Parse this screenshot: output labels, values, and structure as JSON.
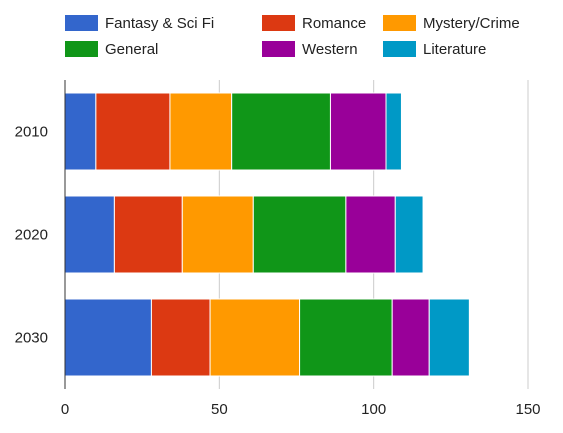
{
  "chart_data": {
    "type": "bar",
    "orientation": "horizontal",
    "stacked": true,
    "categories": [
      "2010",
      "2020",
      "2030"
    ],
    "series": [
      {
        "name": "Fantasy & Sci Fi",
        "color": "#3366cc",
        "values": [
          10,
          16,
          28
        ]
      },
      {
        "name": "Romance",
        "color": "#dc3912",
        "values": [
          24,
          22,
          19
        ]
      },
      {
        "name": "Mystery/Crime",
        "color": "#ff9900",
        "values": [
          20,
          23,
          29
        ]
      },
      {
        "name": "General",
        "color": "#109618",
        "values": [
          32,
          30,
          30
        ]
      },
      {
        "name": "Western",
        "color": "#990099",
        "values": [
          18,
          16,
          12
        ]
      },
      {
        "name": "Literature",
        "color": "#0099c6",
        "values": [
          5,
          9,
          13
        ]
      }
    ],
    "xlim": [
      0,
      150
    ],
    "xticks": [
      "0",
      "50",
      "100",
      "150"
    ],
    "grid": true,
    "legend_position": "top",
    "title": "",
    "xlabel": "",
    "ylabel": ""
  }
}
